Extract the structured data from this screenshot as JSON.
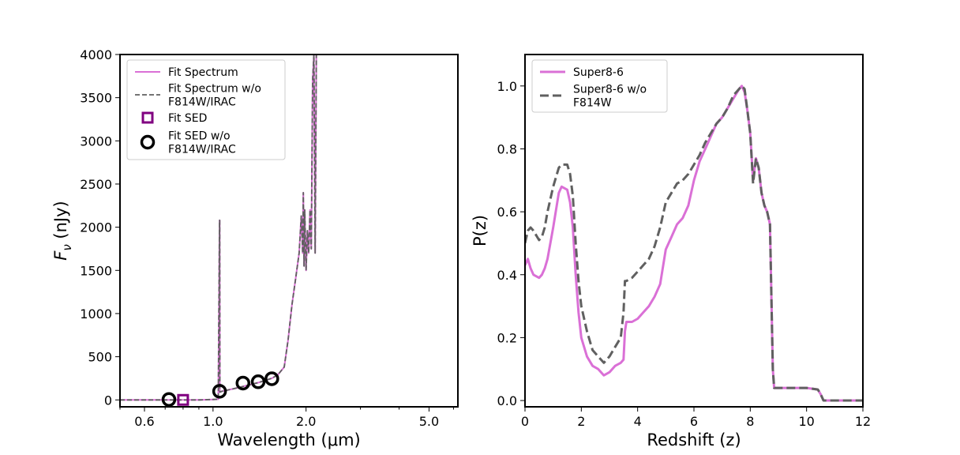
{
  "colors": {
    "fit": "#da70d6",
    "nofit": "#606060",
    "sed_square": "#800080",
    "sed_circle": "#000000",
    "axis": "#000000",
    "legend_border": "#cccccc"
  },
  "chart_data": [
    {
      "id": "left",
      "type": "line",
      "xscale": "log",
      "xlim": [
        0.5,
        6.2
      ],
      "ylim": [
        -80,
        4000
      ],
      "xlabel": "Wavelength (μm)",
      "ylabel_main": "F",
      "ylabel_sub": "ν",
      "ylabel_unit": " (nJy)",
      "xticks": [
        0.6,
        1.0,
        2.0,
        5.0
      ],
      "xtick_labels": [
        "0.6",
        "1.0",
        "2.0",
        "5.0"
      ],
      "yticks": [
        0,
        500,
        1000,
        1500,
        2000,
        2500,
        3000,
        3500,
        4000
      ],
      "ytick_labels": [
        "0",
        "500",
        "1000",
        "1500",
        "2000",
        "2500",
        "3000",
        "3500",
        "4000"
      ],
      "legend": {
        "position": "upper-left",
        "entries": [
          {
            "kind": "solid",
            "lines": [
              "Fit Spectrum"
            ]
          },
          {
            "kind": "dashed",
            "lines": [
              "Fit Spectrum w/o",
              "F814W/IRAC"
            ]
          },
          {
            "kind": "square",
            "lines": [
              "Fit SED"
            ]
          },
          {
            "kind": "circle",
            "lines": [
              "Fit SED w/o",
              "F814W/IRAC"
            ]
          }
        ]
      },
      "series": [
        {
          "name": "Fit Spectrum",
          "style": "solid",
          "x": [
            0.5,
            0.7,
            0.9,
            1.0,
            1.04,
            1.05,
            1.051,
            1.052,
            1.07,
            1.2,
            1.4,
            1.55,
            1.62,
            1.7,
            1.75,
            1.8,
            1.85,
            1.9,
            1.93,
            1.95,
            1.96,
            1.97,
            1.98,
            2.0,
            2.02,
            2.04,
            2.06,
            2.08,
            2.1,
            2.12,
            2.14,
            2.16
          ],
          "y": [
            0,
            0,
            0,
            5,
            8,
            2080,
            2080,
            90,
            100,
            140,
            200,
            250,
            290,
            380,
            700,
            1100,
            1400,
            1700,
            2130,
            1700,
            2400,
            1550,
            2200,
            1500,
            1960,
            1700,
            2200,
            1750,
            3700,
            4000,
            1700,
            4000
          ]
        },
        {
          "name": "Fit Spectrum w/o F814W/IRAC",
          "style": "dashed",
          "x": [
            0.5,
            0.7,
            0.9,
            1.0,
            1.04,
            1.05,
            1.051,
            1.052,
            1.07,
            1.2,
            1.4,
            1.55,
            1.62,
            1.7,
            1.75,
            1.8,
            1.85,
            1.9,
            1.93,
            1.95,
            1.96,
            1.97,
            1.98,
            2.0,
            2.02,
            2.04,
            2.06,
            2.08,
            2.1,
            2.12,
            2.14,
            2.16
          ],
          "y": [
            0,
            0,
            0,
            5,
            8,
            2080,
            2080,
            90,
            100,
            140,
            200,
            250,
            290,
            380,
            700,
            1100,
            1400,
            1700,
            2130,
            1700,
            2400,
            1550,
            2200,
            1500,
            1960,
            1700,
            2200,
            1750,
            3700,
            4000,
            1700,
            4000
          ]
        },
        {
          "name": "Fit SED",
          "style": "square",
          "x": [
            0.8
          ],
          "y": [
            0
          ]
        },
        {
          "name": "Fit SED w/o F814W/IRAC",
          "style": "circle",
          "x": [
            0.72,
            1.05,
            1.25,
            1.4,
            1.55
          ],
          "y": [
            5,
            100,
            195,
            210,
            245
          ]
        }
      ]
    },
    {
      "id": "right",
      "type": "line",
      "xscale": "linear",
      "xlim": [
        0,
        12
      ],
      "ylim": [
        -0.02,
        1.1
      ],
      "xlabel": "Redshift (z)",
      "ylabel": "P(z)",
      "xticks": [
        0,
        2,
        4,
        6,
        8,
        10,
        12
      ],
      "xtick_labels": [
        "0",
        "2",
        "4",
        "6",
        "8",
        "10",
        "12"
      ],
      "yticks": [
        0.0,
        0.2,
        0.4,
        0.6,
        0.8,
        1.0
      ],
      "ytick_labels": [
        "0.0",
        "0.2",
        "0.4",
        "0.6",
        "0.8",
        "1.0"
      ],
      "legend": {
        "position": "upper-left",
        "entries": [
          {
            "kind": "solid",
            "lines": [
              "Super8-6"
            ]
          },
          {
            "kind": "dashed",
            "lines": [
              "Super8-6 w/o",
              "F814W"
            ]
          }
        ]
      },
      "series": [
        {
          "name": "Super8-6",
          "style": "solid",
          "x": [
            0,
            0.1,
            0.2,
            0.3,
            0.5,
            0.6,
            0.7,
            0.8,
            1.0,
            1.2,
            1.3,
            1.5,
            1.6,
            1.7,
            1.8,
            1.9,
            2.0,
            2.2,
            2.4,
            2.6,
            2.8,
            3.0,
            3.2,
            3.4,
            3.5,
            3.55,
            3.6,
            3.8,
            4.0,
            4.2,
            4.4,
            4.6,
            4.8,
            5.0,
            5.2,
            5.4,
            5.6,
            5.8,
            6.0,
            6.2,
            6.4,
            6.6,
            6.8,
            7.0,
            7.2,
            7.4,
            7.6,
            7.7,
            7.8,
            7.9,
            8.0,
            8.1,
            8.2,
            8.3,
            8.4,
            8.5,
            8.6,
            8.7,
            8.8,
            8.85,
            8.9,
            9.0,
            9.5,
            10.0,
            10.4,
            10.5,
            10.6,
            11.0,
            12.0
          ],
          "y": [
            0.43,
            0.45,
            0.42,
            0.4,
            0.39,
            0.4,
            0.42,
            0.45,
            0.55,
            0.66,
            0.68,
            0.67,
            0.63,
            0.55,
            0.4,
            0.28,
            0.2,
            0.14,
            0.11,
            0.1,
            0.08,
            0.09,
            0.11,
            0.12,
            0.13,
            0.22,
            0.25,
            0.25,
            0.26,
            0.28,
            0.3,
            0.33,
            0.37,
            0.48,
            0.52,
            0.56,
            0.58,
            0.62,
            0.7,
            0.76,
            0.8,
            0.84,
            0.88,
            0.9,
            0.93,
            0.96,
            0.99,
            1.0,
            0.98,
            0.92,
            0.85,
            0.7,
            0.77,
            0.74,
            0.66,
            0.62,
            0.6,
            0.56,
            0.1,
            0.04,
            0.04,
            0.04,
            0.04,
            0.04,
            0.035,
            0.02,
            0.0,
            0.0,
            0.0
          ]
        },
        {
          "name": "Super8-6 w/o F814W",
          "style": "dashed",
          "x": [
            0,
            0.1,
            0.2,
            0.3,
            0.5,
            0.6,
            0.7,
            0.8,
            1.0,
            1.2,
            1.3,
            1.5,
            1.6,
            1.7,
            1.8,
            1.9,
            2.0,
            2.2,
            2.4,
            2.6,
            2.8,
            3.0,
            3.2,
            3.4,
            3.5,
            3.55,
            3.6,
            3.8,
            4.0,
            4.2,
            4.4,
            4.6,
            4.8,
            5.0,
            5.2,
            5.4,
            5.6,
            5.8,
            6.0,
            6.2,
            6.4,
            6.6,
            6.8,
            7.0,
            7.2,
            7.4,
            7.6,
            7.7,
            7.8,
            7.9,
            8.0,
            8.1,
            8.2,
            8.3,
            8.4,
            8.5,
            8.6,
            8.7,
            8.8,
            8.85,
            8.9,
            9.0,
            9.5,
            10.0,
            10.4,
            10.5,
            10.6,
            11.0,
            12.0
          ],
          "y": [
            0.5,
            0.54,
            0.55,
            0.54,
            0.51,
            0.52,
            0.55,
            0.6,
            0.68,
            0.74,
            0.75,
            0.75,
            0.72,
            0.65,
            0.5,
            0.38,
            0.3,
            0.22,
            0.16,
            0.14,
            0.12,
            0.14,
            0.17,
            0.2,
            0.28,
            0.38,
            0.38,
            0.39,
            0.41,
            0.43,
            0.45,
            0.49,
            0.55,
            0.63,
            0.66,
            0.69,
            0.7,
            0.72,
            0.75,
            0.78,
            0.82,
            0.85,
            0.88,
            0.9,
            0.93,
            0.97,
            0.99,
            1.0,
            0.99,
            0.92,
            0.85,
            0.69,
            0.77,
            0.74,
            0.66,
            0.62,
            0.6,
            0.56,
            0.1,
            0.04,
            0.04,
            0.04,
            0.04,
            0.04,
            0.035,
            0.02,
            0.0,
            0.0,
            0.0
          ]
        }
      ]
    }
  ]
}
